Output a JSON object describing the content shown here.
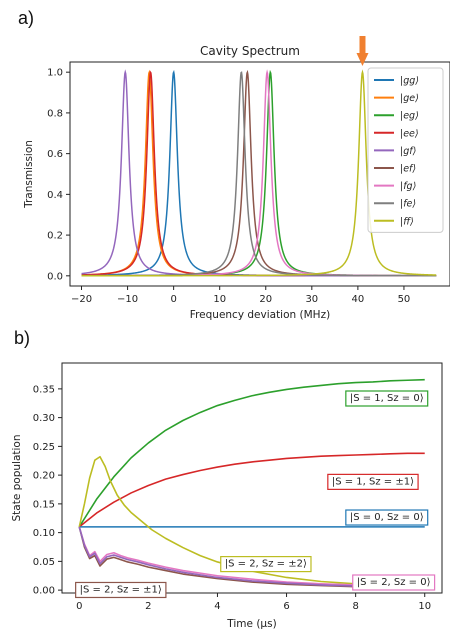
{
  "panel_labels": {
    "a": "a)",
    "b": "b)"
  },
  "chart_data": [
    {
      "type": "line",
      "title": "Cavity Spectrum",
      "xlabel": "Frequency deviation (MHz)",
      "ylabel": "Transmission",
      "xlim": [
        -22.5,
        60
      ],
      "ylim": [
        -0.05,
        1.05
      ],
      "xticks": [
        -20,
        -10,
        0,
        10,
        20,
        30,
        40,
        50
      ],
      "yticks": [
        0.0,
        0.2,
        0.4,
        0.6,
        0.8,
        1.0
      ],
      "grid": false,
      "legend_position": "right",
      "linewidth_mhz": 1.0,
      "marker": {
        "x": 41,
        "color": "#f08030",
        "shape": "down-arrow"
      },
      "series": [
        {
          "name": "|gg⟩",
          "label": "|gg⟩",
          "center": 0.0,
          "color": "#1f77b4"
        },
        {
          "name": "|ge⟩",
          "label": "|ge⟩",
          "center": -5.3,
          "color": "#ff7f0e"
        },
        {
          "name": "|eg⟩",
          "label": "|eg⟩",
          "center": 21.0,
          "color": "#2ca02c"
        },
        {
          "name": "|ee⟩",
          "label": "|ee⟩",
          "center": -5.0,
          "color": "#d62728"
        },
        {
          "name": "|gf⟩",
          "label": "|gf⟩",
          "center": -10.5,
          "color": "#9467bd"
        },
        {
          "name": "|ef⟩",
          "label": "|ef⟩",
          "center": 16.0,
          "color": "#8c564b"
        },
        {
          "name": "|fg⟩",
          "label": "|fg⟩",
          "center": 20.3,
          "color": "#e377c2"
        },
        {
          "name": "|fe⟩",
          "label": "|fe⟩",
          "center": 14.7,
          "color": "#7f7f7f"
        },
        {
          "name": "|ff⟩",
          "label": "|ff⟩",
          "center": 41.0,
          "color": "#bcbd22"
        }
      ]
    },
    {
      "type": "line",
      "xlabel": "Time (μs)",
      "ylabel": "State population",
      "xlim": [
        -0.5,
        10.5
      ],
      "ylim": [
        -0.005,
        0.395
      ],
      "xticks": [
        0,
        2,
        4,
        6,
        8,
        10
      ],
      "yticks": [
        0.0,
        0.05,
        0.1,
        0.15,
        0.2,
        0.25,
        0.3,
        0.35
      ],
      "grid": false,
      "series": [
        {
          "label": "|S = 1, Sz = 0⟩",
          "color": "#2ca02c",
          "label_pos": {
            "t": 8.9,
            "y": 0.335
          },
          "x": [
            0,
            0.5,
            1,
            1.5,
            2,
            2.5,
            3,
            3.5,
            4,
            4.5,
            5,
            5.5,
            6,
            6.5,
            7,
            7.5,
            8,
            8.5,
            9,
            9.5,
            10
          ],
          "y": [
            0.11,
            0.158,
            0.197,
            0.23,
            0.256,
            0.278,
            0.295,
            0.309,
            0.321,
            0.33,
            0.338,
            0.344,
            0.349,
            0.353,
            0.356,
            0.359,
            0.361,
            0.362,
            0.364,
            0.365,
            0.366
          ]
        },
        {
          "label": "|S = 1, Sz = ±1⟩",
          "color": "#d62728",
          "label_pos": {
            "t": 8.5,
            "y": 0.19
          },
          "x": [
            0,
            0.5,
            1,
            1.5,
            2,
            2.5,
            3,
            3.5,
            4,
            4.5,
            5,
            5.5,
            6,
            6.5,
            7,
            7.5,
            8,
            8.5,
            9,
            9.5,
            10
          ],
          "y": [
            0.11,
            0.134,
            0.153,
            0.169,
            0.182,
            0.193,
            0.201,
            0.208,
            0.214,
            0.219,
            0.223,
            0.226,
            0.229,
            0.231,
            0.233,
            0.234,
            0.235,
            0.236,
            0.237,
            0.238,
            0.238
          ]
        },
        {
          "label": "|S = 0, Sz = 0⟩",
          "color": "#1f77b4",
          "label_pos": {
            "t": 8.9,
            "y": 0.128
          },
          "x": [
            0,
            10
          ],
          "y": [
            0.11,
            0.11
          ]
        },
        {
          "label": "|S = 2, Sz = ±2⟩",
          "color": "#bcbd22",
          "label_pos": {
            "t": 5.4,
            "y": 0.047
          },
          "x": [
            0,
            0.15,
            0.3,
            0.45,
            0.6,
            0.75,
            0.9,
            1.1,
            1.3,
            1.5,
            1.8,
            2.1,
            2.5,
            3,
            3.5,
            4,
            5,
            6,
            7,
            8,
            9,
            10
          ],
          "y": [
            0.11,
            0.15,
            0.195,
            0.226,
            0.232,
            0.215,
            0.19,
            0.165,
            0.148,
            0.135,
            0.12,
            0.105,
            0.09,
            0.074,
            0.06,
            0.049,
            0.033,
            0.022,
            0.015,
            0.011,
            0.008,
            0.007
          ]
        },
        {
          "label": "|S = 2, Sz = 0⟩",
          "color": "#e377c2",
          "label_pos": {
            "t": 9.1,
            "y": 0.015
          },
          "x": [
            0,
            0.15,
            0.3,
            0.45,
            0.6,
            0.8,
            1.0,
            1.2,
            1.4,
            1.7,
            2.0,
            2.5,
            3,
            4,
            5,
            6,
            7,
            8,
            9,
            10
          ],
          "y": [
            0.11,
            0.08,
            0.06,
            0.067,
            0.05,
            0.062,
            0.065,
            0.06,
            0.056,
            0.052,
            0.047,
            0.04,
            0.034,
            0.025,
            0.019,
            0.014,
            0.011,
            0.009,
            0.008,
            0.007
          ]
        },
        {
          "label": "|S = 2, Sz = ±1⟩",
          "color": "#8c564b",
          "label_pos": {
            "t": 1.2,
            "y": 0.002
          },
          "x": [
            0,
            0.15,
            0.3,
            0.45,
            0.6,
            0.8,
            1.0,
            1.2,
            1.4,
            1.7,
            2.0,
            2.5,
            3,
            4,
            5,
            6,
            7,
            8,
            9,
            10
          ],
          "y": [
            0.11,
            0.075,
            0.055,
            0.06,
            0.042,
            0.054,
            0.057,
            0.053,
            0.049,
            0.045,
            0.04,
            0.034,
            0.028,
            0.02,
            0.014,
            0.01,
            0.008,
            0.006,
            0.005,
            0.004
          ]
        },
        {
          "label": "",
          "color": "#9467bd",
          "label_pos": null,
          "x": [
            0,
            0.15,
            0.3,
            0.45,
            0.6,
            0.8,
            1.0,
            1.2,
            1.4,
            1.7,
            2.0,
            2.5,
            3,
            4,
            5,
            6,
            7,
            8,
            9,
            10
          ],
          "y": [
            0.11,
            0.078,
            0.058,
            0.064,
            0.046,
            0.058,
            0.061,
            0.057,
            0.053,
            0.049,
            0.044,
            0.037,
            0.031,
            0.022,
            0.016,
            0.012,
            0.009,
            0.007,
            0.006,
            0.005
          ]
        }
      ]
    }
  ]
}
